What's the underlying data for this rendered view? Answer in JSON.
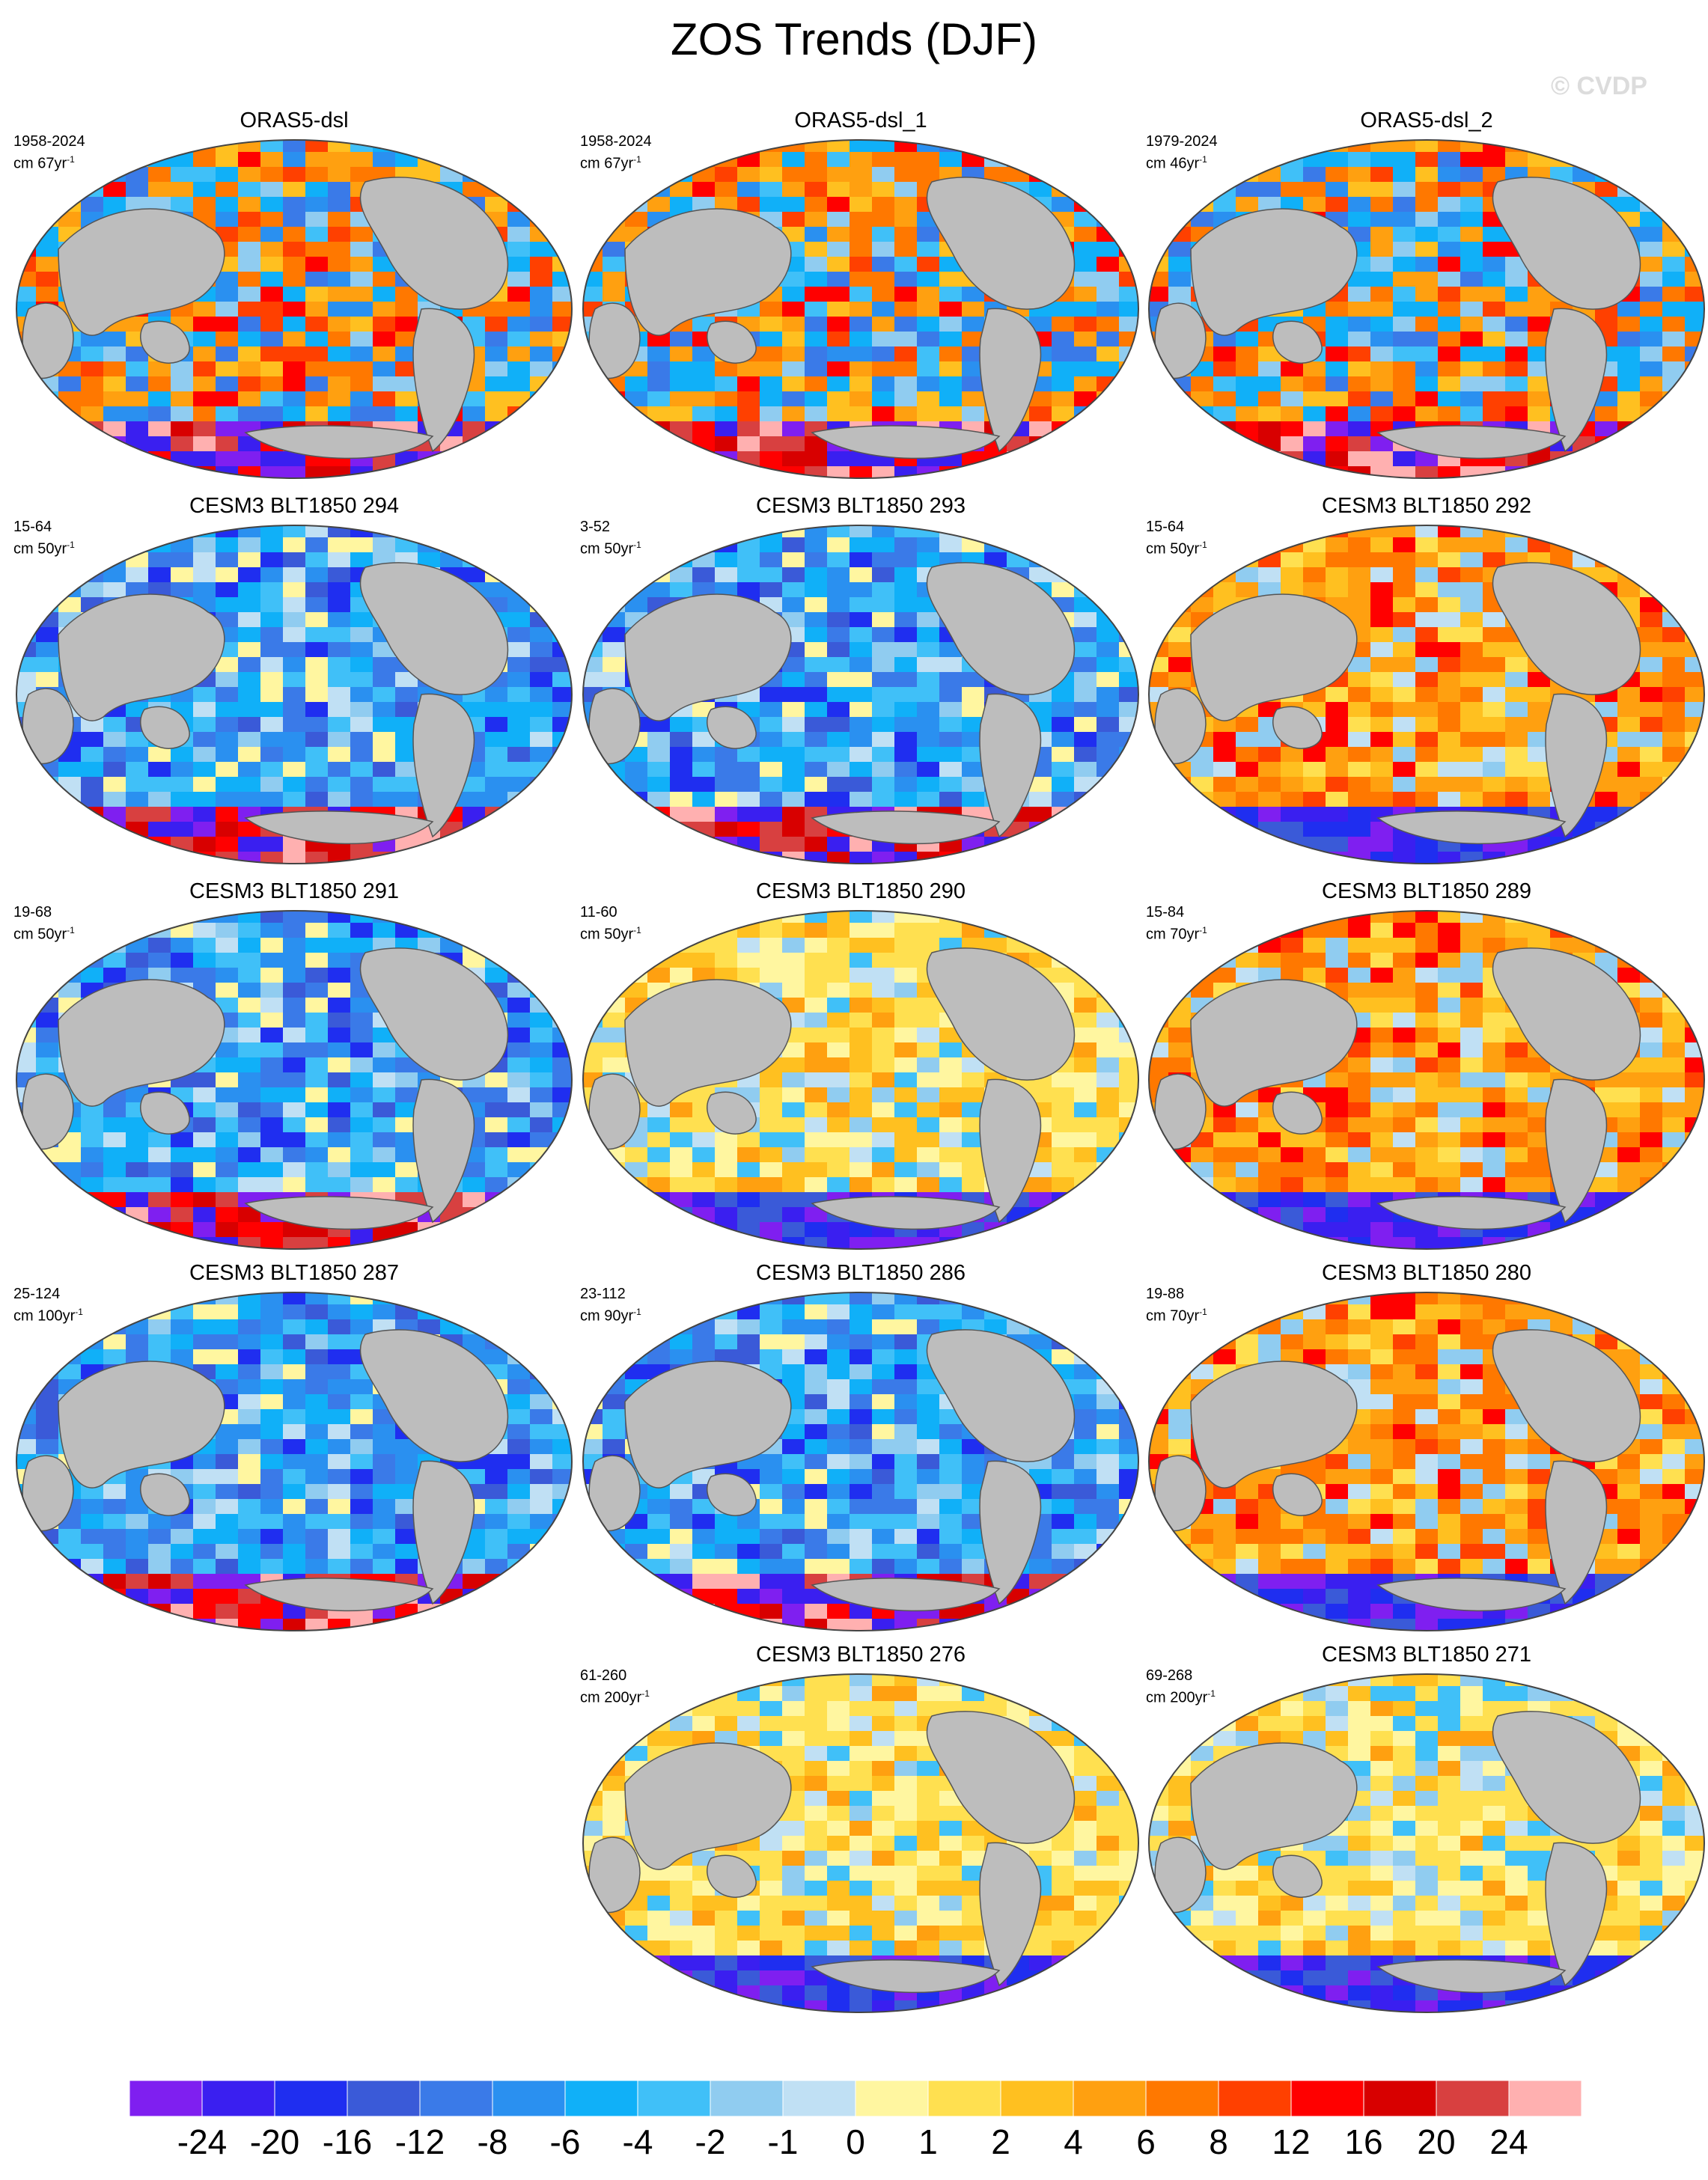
{
  "title": "ZOS Trends (DJF)",
  "watermark": "© CVDP",
  "panels": [
    {
      "title": "ORAS5-dsl",
      "period": "1958-2024",
      "unit": "cm 67yr",
      "exp": "-1",
      "tone": "mixed_warm"
    },
    {
      "title": "ORAS5-dsl_1",
      "period": "1958-2024",
      "unit": "cm 67yr",
      "exp": "-1",
      "tone": "mixed_warm"
    },
    {
      "title": "ORAS5-dsl_2",
      "period": "1979-2024",
      "unit": "cm 46yr",
      "exp": "-1",
      "tone": "mixed_warm"
    },
    {
      "title": "CESM3 BLT1850 294",
      "period": "15-64",
      "unit": "cm 50yr",
      "exp": "-1",
      "tone": "cool"
    },
    {
      "title": "CESM3 BLT1850 293",
      "period": "3-52",
      "unit": "cm 50yr",
      "exp": "-1",
      "tone": "cool"
    },
    {
      "title": "CESM3 BLT1850 292",
      "period": "15-64",
      "unit": "cm 50yr",
      "exp": "-1",
      "tone": "warm"
    },
    {
      "title": "CESM3 BLT1850 291",
      "period": "19-68",
      "unit": "cm 50yr",
      "exp": "-1",
      "tone": "cool"
    },
    {
      "title": "CESM3 BLT1850 290",
      "period": "11-60",
      "unit": "cm 50yr",
      "exp": "-1",
      "tone": "yellow"
    },
    {
      "title": "CESM3 BLT1850 289",
      "period": "15-84",
      "unit": "cm 70yr",
      "exp": "-1",
      "tone": "warm"
    },
    {
      "title": "CESM3 BLT1850 287",
      "period": "25-124",
      "unit": "cm 100yr",
      "exp": "-1",
      "tone": "cool"
    },
    {
      "title": "CESM3 BLT1850 286",
      "period": "23-112",
      "unit": "cm 90yr",
      "exp": "-1",
      "tone": "cool"
    },
    {
      "title": "CESM3 BLT1850 280",
      "period": "19-88",
      "unit": "cm 70yr",
      "exp": "-1",
      "tone": "warm"
    },
    {
      "title": "",
      "period": "",
      "unit": "",
      "exp": "",
      "tone": "empty"
    },
    {
      "title": "CESM3 BLT1850 276",
      "period": "61-260",
      "unit": "cm 200yr",
      "exp": "-1",
      "tone": "yellow"
    },
    {
      "title": "CESM3 BLT1850 271",
      "period": "69-268",
      "unit": "cm 200yr",
      "exp": "-1",
      "tone": "yellow"
    }
  ],
  "colorbar": {
    "colors": [
      "#7f1ff0",
      "#3a1ff0",
      "#1f2ef0",
      "#3a5ad8",
      "#3a7ae8",
      "#2a90f0",
      "#10b0f8",
      "#40c0f8",
      "#90ccf0",
      "#c0e0f4",
      "#fff6a0",
      "#ffe050",
      "#ffc020",
      "#ffa010",
      "#ff7800",
      "#ff4000",
      "#ff0000",
      "#d80000",
      "#d84040",
      "#ffb0b0"
    ],
    "labels": [
      "-24",
      "-20",
      "-16",
      "-12",
      "-8",
      "-6",
      "-4",
      "-2",
      "-1",
      "0",
      "1",
      "2",
      "4",
      "6",
      "8",
      "12",
      "16",
      "20",
      "24"
    ]
  }
}
